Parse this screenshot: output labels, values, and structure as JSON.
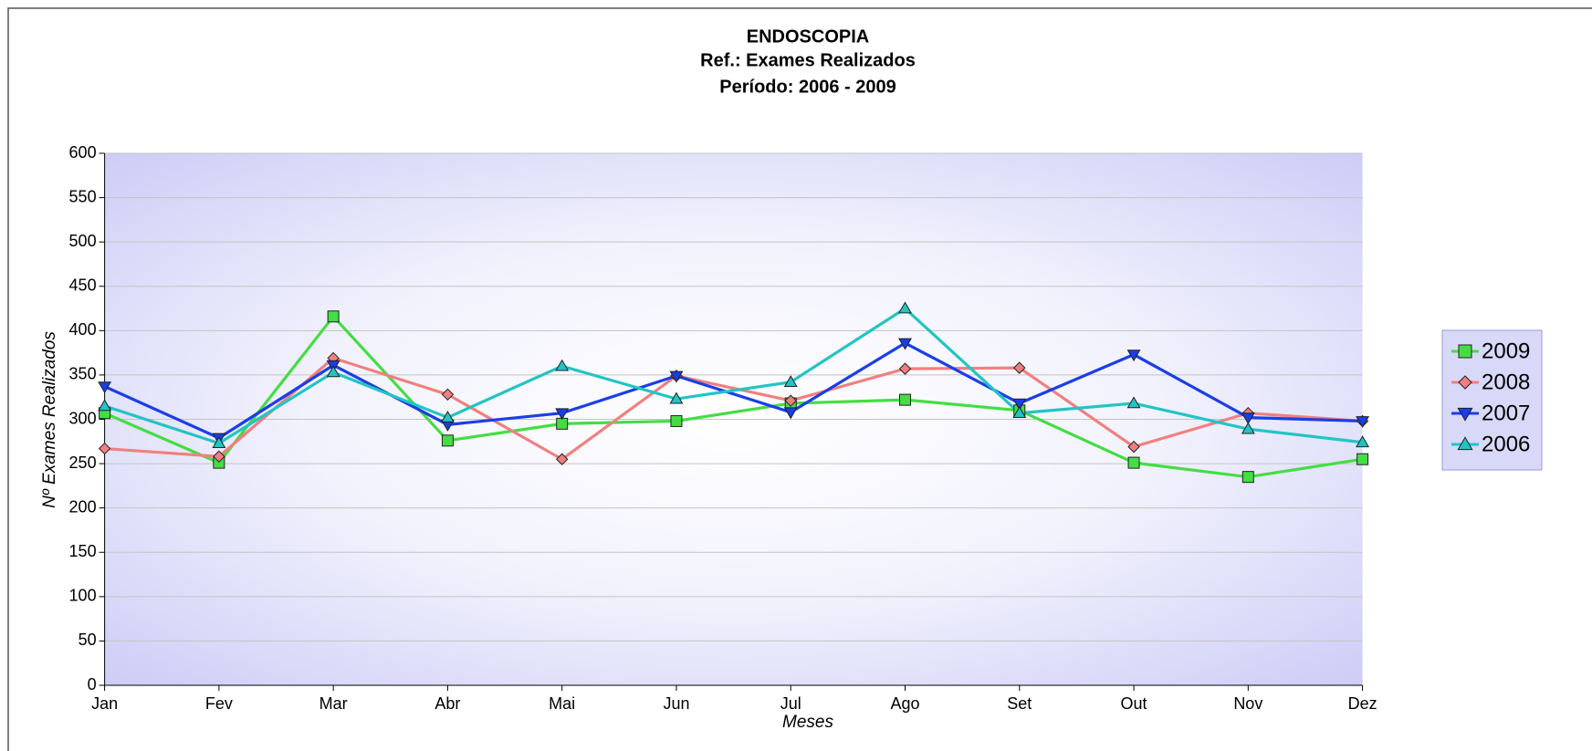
{
  "chart_data": {
    "type": "line",
    "title": "ENDOSCOPIA",
    "subtitle": "Ref.: Exames Realizados",
    "subtitle2": "Período: 2006 - 2009",
    "x_label": "Meses",
    "y_label": "Nº Exames Realizados",
    "categories": [
      "Jan",
      "Fev",
      "Mar",
      "Abr",
      "Mai",
      "Jun",
      "Jul",
      "Ago",
      "Set",
      "Out",
      "Nov",
      "Dez"
    ],
    "series": [
      {
        "name": "2009",
        "color": "#44dd44",
        "marker": "square",
        "values": [
          307,
          251,
          416,
          276,
          295,
          298,
          318,
          322,
          310,
          251,
          235,
          255
        ]
      },
      {
        "name": "2008",
        "color": "#f08080",
        "marker": "diamond",
        "values": [
          267,
          258,
          369,
          328,
          255,
          349,
          321,
          357,
          358,
          269,
          307,
          298
        ]
      },
      {
        "name": "2007",
        "color": "#1a3ee8",
        "marker": "triangle-down",
        "values": [
          337,
          279,
          361,
          294,
          307,
          349,
          308,
          386,
          318,
          373,
          302,
          298
        ]
      },
      {
        "name": "2006",
        "color": "#22c4c4",
        "marker": "triangle-up",
        "values": [
          315,
          273,
          353,
          302,
          360,
          323,
          342,
          425,
          307,
          318,
          289,
          274
        ]
      }
    ],
    "ylim": [
      0,
      600
    ],
    "yticks": [
      0,
      50,
      100,
      150,
      200,
      250,
      300,
      350,
      400,
      450,
      500,
      550,
      600
    ],
    "grid": true,
    "legend": "right"
  }
}
